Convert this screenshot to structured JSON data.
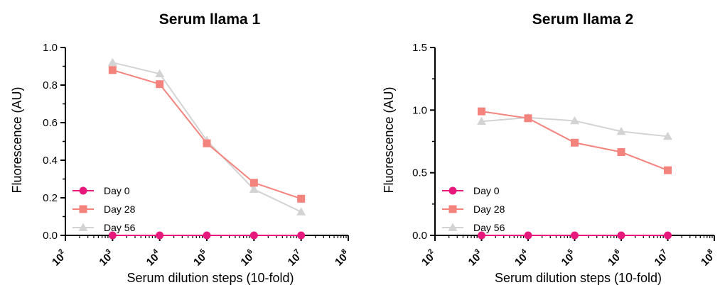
{
  "chart_data": [
    {
      "type": "line",
      "title": "Serum llama 1",
      "xlabel": "Serum dilution steps (10-fold)",
      "ylabel": "Fluorescence (AU)",
      "x_scale": "log10",
      "xlim": [
        100,
        100000000
      ],
      "x_ticks": [
        {
          "base": "10",
          "exp": "2"
        },
        {
          "base": "10",
          "exp": "3"
        },
        {
          "base": "10",
          "exp": "4"
        },
        {
          "base": "10",
          "exp": "5"
        },
        {
          "base": "10",
          "exp": "6"
        },
        {
          "base": "10",
          "exp": "7"
        },
        {
          "base": "10",
          "exp": "8"
        }
      ],
      "ylim": [
        0,
        1.0
      ],
      "y_ticks": [
        "0.0",
        "0.2",
        "0.4",
        "0.6",
        "0.8",
        "1.0"
      ],
      "x": [
        1000,
        10000,
        100000,
        1000000,
        10000000
      ],
      "legend_position": "bottom-left",
      "series": [
        {
          "name": "Day 0",
          "color": "#e8197d",
          "marker": "circle",
          "values": [
            0.0,
            0.0,
            0.0,
            0.0,
            0.0
          ]
        },
        {
          "name": "Day 28",
          "color": "#f4837d",
          "marker": "square",
          "values": [
            0.88,
            0.805,
            0.49,
            0.28,
            0.195
          ]
        },
        {
          "name": "Day 56",
          "color": "#d3d3d3",
          "marker": "triangle",
          "values": [
            0.92,
            0.86,
            0.505,
            0.245,
            0.125
          ]
        }
      ]
    },
    {
      "type": "line",
      "title": "Serum llama 2",
      "xlabel": "Serum dilution steps (10-fold)",
      "ylabel": "Fluorescence (AU)",
      "x_scale": "log10",
      "xlim": [
        100,
        100000000
      ],
      "x_ticks": [
        {
          "base": "10",
          "exp": "2"
        },
        {
          "base": "10",
          "exp": "3"
        },
        {
          "base": "10",
          "exp": "4"
        },
        {
          "base": "10",
          "exp": "5"
        },
        {
          "base": "10",
          "exp": "6"
        },
        {
          "base": "10",
          "exp": "7"
        },
        {
          "base": "10",
          "exp": "8"
        }
      ],
      "ylim": [
        0,
        1.5
      ],
      "y_ticks": [
        "0.0",
        "0.5",
        "1.0",
        "1.5"
      ],
      "x": [
        1000,
        10000,
        100000,
        1000000,
        10000000
      ],
      "legend_position": "bottom-left",
      "series": [
        {
          "name": "Day 0",
          "color": "#e8197d",
          "marker": "circle",
          "values": [
            0.0,
            0.0,
            0.0,
            0.0,
            0.0
          ]
        },
        {
          "name": "Day 28",
          "color": "#f4837d",
          "marker": "square",
          "values": [
            0.99,
            0.935,
            0.74,
            0.665,
            0.52
          ]
        },
        {
          "name": "Day 56",
          "color": "#d3d3d3",
          "marker": "triangle",
          "values": [
            0.91,
            0.94,
            0.915,
            0.83,
            0.79
          ]
        }
      ]
    }
  ]
}
